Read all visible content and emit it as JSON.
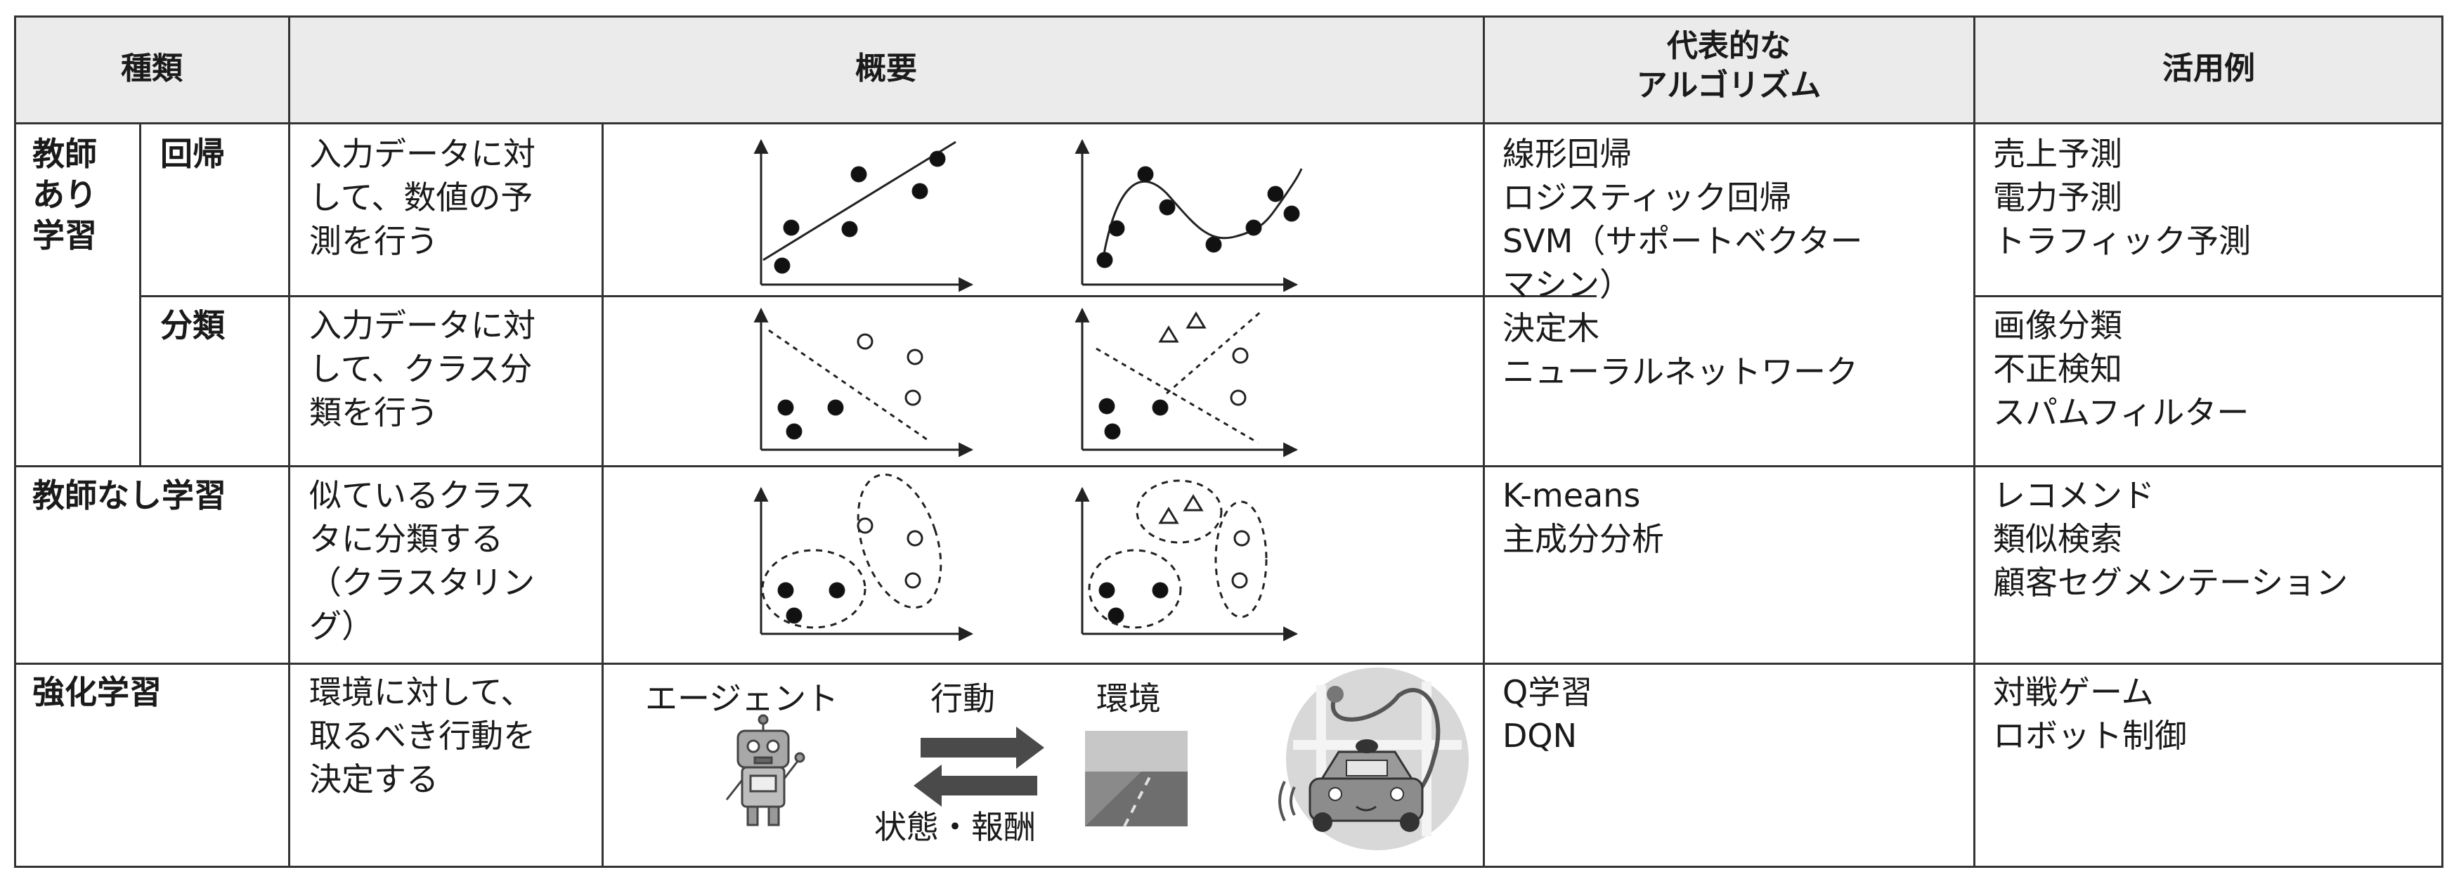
{
  "headers": {
    "type": "種類",
    "overview": "概要",
    "algorithms": "代表的な\nアルゴリズム",
    "use_cases": "活用例"
  },
  "rows": {
    "supervised": {
      "label": "教師\nあり\n学習",
      "regression": {
        "label": "回帰",
        "description": "入力データに対\nして、数値の予\n測を行う"
      },
      "classification": {
        "label": "分類",
        "description": "入力データに対\nして、クラス分\n類を行う"
      },
      "algorithms": "線形回帰\nロジスティック回帰\nSVM（サポートベクター\nマシン）\n決定木\nニューラルネットワーク",
      "regression_use_cases": "売上予測\n電力予測\nトラフィック予測",
      "classification_use_cases": "画像分類\n不正検知\nスパムフィルター"
    },
    "unsupervised": {
      "label": "教師なし学習",
      "description": "似ているクラス\nタに分類する\n（クラスタリン\nグ）",
      "algorithms": "K-means\n主成分分析",
      "use_cases": "レコメンド\n類似検索\n顧客セグメンテーション"
    },
    "reinforcement": {
      "label": "強化学習",
      "description": "環境に対して、\n取るべき行動を\n決定する",
      "diagram": {
        "agent": "エージェント",
        "action": "行動",
        "environment": "環境",
        "feedback": "状態・報酬"
      },
      "algorithms": "Q学習\nDQN",
      "use_cases": "対戦ゲーム\nロボット制御"
    }
  },
  "icons": [
    "robot-agent-icon",
    "action-arrow-icon",
    "feedback-arrow-icon",
    "road-environment-icon",
    "self-driving-car-icon"
  ]
}
